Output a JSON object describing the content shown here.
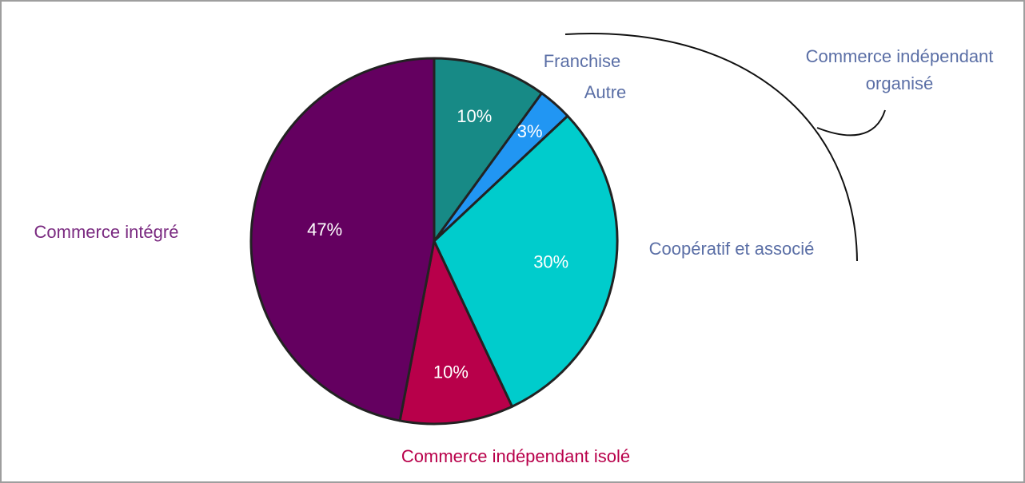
{
  "chart_data": {
    "type": "pie",
    "categories": [
      "Franchise",
      "Autre",
      "Coopératif et associé",
      "Commerce indépendant isolé",
      "Commerce intégré"
    ],
    "values": [
      10,
      3,
      30,
      10,
      47
    ],
    "value_labels": [
      "10%",
      "3%",
      "30%",
      "10%",
      "47%"
    ],
    "colors": [
      "#178a86",
      "#2196f3",
      "#00cccc",
      "#b8004a",
      "#640060"
    ],
    "label_colors": [
      "#5b6fa6",
      "#5b6fa6",
      "#5b6fa6",
      "#b8004a",
      "#7a2a80"
    ],
    "annotation": "Commerce indépendant organisé"
  }
}
